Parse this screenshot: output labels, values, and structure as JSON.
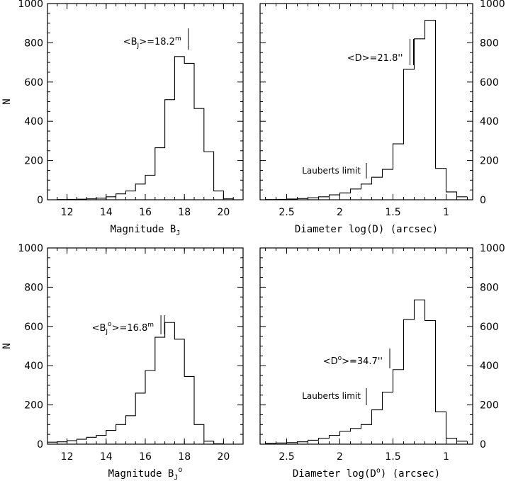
{
  "chart_data": [
    {
      "type": "histogram",
      "xlabel": "Magnitude B",
      "xlabel_sub": "J",
      "xlabel_sup": "",
      "ylabel": "N",
      "xlim": [
        11,
        21
      ],
      "ylim": [
        0,
        1000
      ],
      "x_reversed": false,
      "x_ticks": [
        12,
        14,
        16,
        18,
        20
      ],
      "x_tick_labels": [
        "12",
        "14",
        "16",
        "18",
        "20"
      ],
      "y_ticks": [
        0,
        200,
        400,
        600,
        800,
        1000
      ],
      "y_tick_labels": [
        "0",
        "200",
        "400",
        "600",
        "800",
        "1000"
      ],
      "y_labels_side": "left",
      "bin_edges": [
        11,
        11.5,
        12,
        12.5,
        13,
        13.5,
        14,
        14.5,
        15,
        15.5,
        16,
        16.5,
        17,
        17.5,
        18,
        18.5,
        19,
        19.5,
        20,
        20.5,
        21
      ],
      "counts": [
        0,
        1,
        2,
        3,
        5,
        8,
        15,
        30,
        45,
        80,
        125,
        265,
        510,
        730,
        695,
        465,
        245,
        45,
        5,
        0
      ],
      "annotation": {
        "text": "<B",
        "sub": "J",
        "rest": ">=18.2",
        "sup": "m",
        "marker_x": 18.2
      },
      "limit_marker": null
    },
    {
      "type": "histogram",
      "xlabel": "Diameter log(D) (arcsec)",
      "xlabel_sub": "",
      "xlabel_sup": "",
      "ylabel": "",
      "xlim": [
        2.75,
        0.75
      ],
      "ylim": [
        0,
        1000
      ],
      "x_reversed": true,
      "x_ticks": [
        2.5,
        2,
        1.5,
        1
      ],
      "x_tick_labels": [
        "2.5",
        "2",
        "1.5",
        "1"
      ],
      "y_ticks": [
        0,
        200,
        400,
        600,
        800,
        1000
      ],
      "y_tick_labels": [
        "0",
        "200",
        "400",
        "600",
        "800",
        "1000"
      ],
      "y_labels_side": "right",
      "bin_edges": [
        2.7,
        2.6,
        2.5,
        2.4,
        2.3,
        2.2,
        2.1,
        2.0,
        1.9,
        1.8,
        1.7,
        1.6,
        1.5,
        1.4,
        1.3,
        1.2,
        1.1,
        1.0,
        0.9,
        0.8
      ],
      "counts": [
        1,
        2,
        4,
        6,
        10,
        15,
        25,
        35,
        55,
        80,
        115,
        155,
        285,
        665,
        820,
        915,
        160,
        40,
        15
      ],
      "annotation": {
        "text": "<D>=21.8''",
        "sub": "",
        "rest": "",
        "sup": "",
        "marker_x": 1.34
      },
      "limit_marker": {
        "text": "Lauberts limit",
        "x": 1.75
      }
    },
    {
      "type": "histogram",
      "xlabel": "Magnitude B",
      "xlabel_sub": "J",
      "xlabel_sup": "o",
      "ylabel": "N",
      "xlim": [
        11,
        21
      ],
      "ylim": [
        0,
        1000
      ],
      "x_reversed": false,
      "x_ticks": [
        12,
        14,
        16,
        18,
        20
      ],
      "x_tick_labels": [
        "12",
        "14",
        "16",
        "18",
        "20"
      ],
      "y_ticks": [
        0,
        200,
        400,
        600,
        800,
        1000
      ],
      "y_tick_labels": [
        "0",
        "200",
        "400",
        "600",
        "800",
        "1000"
      ],
      "y_labels_side": "left",
      "bin_edges": [
        11,
        11.5,
        12,
        12.5,
        13,
        13.5,
        14,
        14.5,
        15,
        15.5,
        16,
        16.5,
        17,
        17.5,
        18,
        18.5,
        19,
        19.5,
        20,
        20.5,
        21
      ],
      "counts": [
        10,
        12,
        18,
        25,
        35,
        45,
        70,
        100,
        145,
        260,
        375,
        545,
        620,
        535,
        345,
        100,
        15,
        2,
        0,
        0
      ],
      "annotation": {
        "text": "<B",
        "sub": "J",
        "rest": "o>=16.8",
        "sup": "m",
        "marker_x": 16.8
      },
      "limit_marker": null
    },
    {
      "type": "histogram",
      "xlabel": "Diameter log(D",
      "xlabel_sub": "",
      "xlabel_sup": "o",
      "xlabel_tail": ") (arcsec)",
      "ylabel": "",
      "xlim": [
        2.75,
        0.75
      ],
      "ylim": [
        0,
        1000
      ],
      "x_reversed": true,
      "x_ticks": [
        2.5,
        2,
        1.5,
        1
      ],
      "x_tick_labels": [
        "2.5",
        "2",
        "1.5",
        "1"
      ],
      "y_ticks": [
        0,
        200,
        400,
        600,
        800,
        1000
      ],
      "y_tick_labels": [
        "0",
        "200",
        "400",
        "600",
        "800",
        "1000"
      ],
      "y_labels_side": "right",
      "bin_edges": [
        2.7,
        2.6,
        2.5,
        2.4,
        2.3,
        2.2,
        2.1,
        2.0,
        1.9,
        1.8,
        1.7,
        1.6,
        1.5,
        1.4,
        1.3,
        1.2,
        1.1,
        1.0,
        0.9,
        0.8
      ],
      "counts": [
        4,
        6,
        8,
        12,
        20,
        30,
        45,
        65,
        80,
        100,
        175,
        265,
        380,
        635,
        735,
        630,
        165,
        30,
        15
      ],
      "annotation": {
        "text": "<D",
        "sub": "",
        "rest": ">=34.7''",
        "sup": "o",
        "marker_x": 1.53
      },
      "limit_marker": {
        "text": "Lauberts limit",
        "x": 1.75
      }
    }
  ]
}
